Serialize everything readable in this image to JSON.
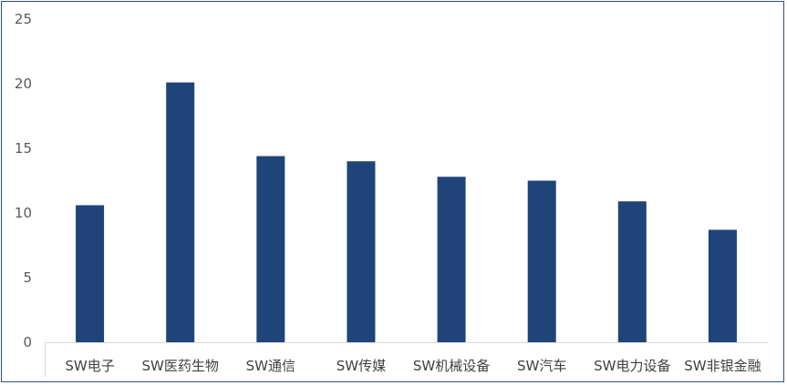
{
  "chart_data": {
    "type": "bar",
    "categories": [
      "SW电子",
      "SW医药生物",
      "SW通信",
      "SW传媒",
      "SW机械设备",
      "SW汽车",
      "SW电力设备",
      "SW非银金融"
    ],
    "values": [
      10.6,
      20.1,
      14.4,
      14.0,
      12.8,
      12.5,
      10.9,
      8.7
    ],
    "title": "",
    "xlabel": "",
    "ylabel": "",
    "ylim": [
      0,
      25
    ],
    "yticks": [
      0,
      5,
      10,
      15,
      20,
      25
    ],
    "grid": false,
    "bar_color": "#1f4479"
  }
}
